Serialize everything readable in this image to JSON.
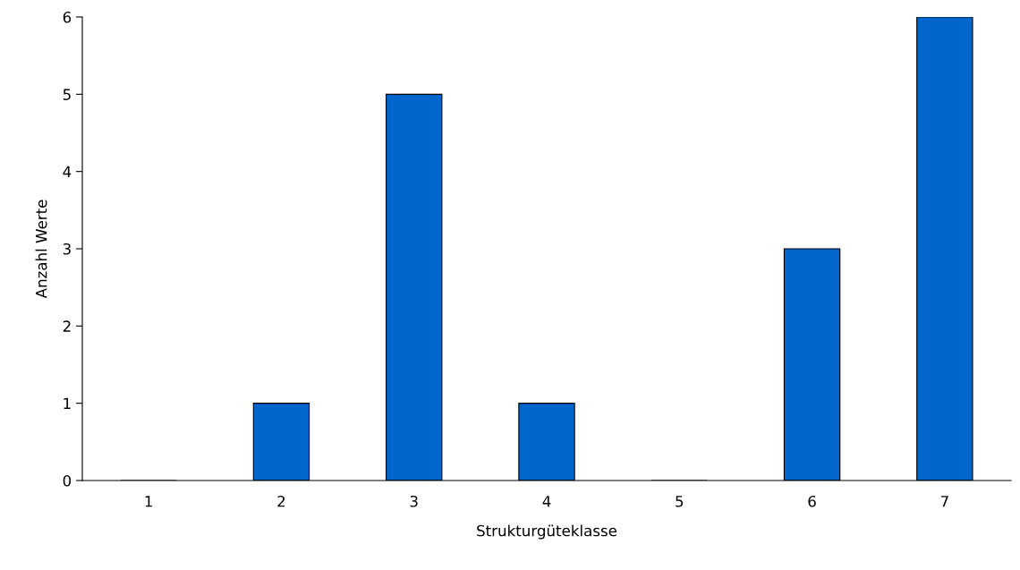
{
  "chart_data": {
    "type": "bar",
    "xlabel": "Strukturgüteklasse",
    "ylabel": "Anzahl Werte",
    "categories": [
      "1",
      "2",
      "3",
      "4",
      "5",
      "6",
      "7"
    ],
    "values": [
      0,
      1,
      5,
      1,
      0,
      3,
      6
    ],
    "color": "#0066cc",
    "ylim": [
      0,
      6
    ],
    "yticks": [
      0,
      1,
      2,
      3,
      4,
      5,
      6
    ],
    "grid": false,
    "legend": false
  }
}
